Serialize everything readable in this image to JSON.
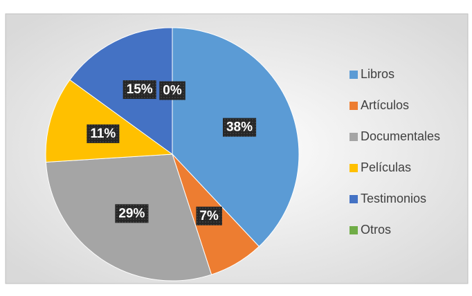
{
  "chart_data": {
    "type": "pie",
    "categories": [
      "Libros",
      "Artículos",
      "Documentales",
      "Películas",
      "Testimonios",
      "Otros"
    ],
    "values": [
      38,
      7,
      29,
      11,
      15,
      0
    ],
    "value_labels": [
      "38%",
      "7%",
      "29%",
      "11%",
      "15%",
      "0%"
    ],
    "colors": [
      "#5b9bd5",
      "#ed7d31",
      "#a5a5a5",
      "#ffc000",
      "#4472c4",
      "#70ad47"
    ],
    "legend": "right"
  }
}
